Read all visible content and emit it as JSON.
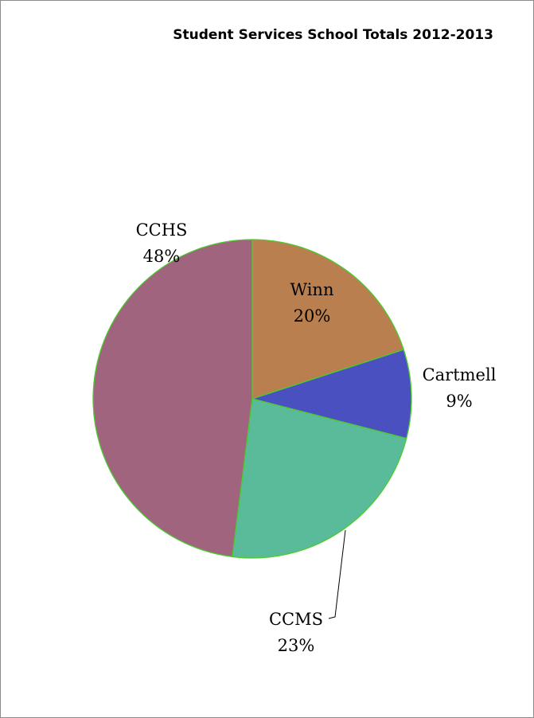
{
  "chart_data": {
    "type": "pie",
    "title": "Student Services School Totals 2012-2013",
    "slices": [
      {
        "label": "Winn",
        "percent_label": "20%",
        "value": 20,
        "color": "#BA7F4F"
      },
      {
        "label": "Cartmell",
        "percent_label": "9%",
        "value": 9,
        "color": "#4B50C1"
      },
      {
        "label": "CCMS",
        "percent_label": "23%",
        "value": 23,
        "color": "#59BB9A"
      },
      {
        "label": "CCHS",
        "percent_label": "48%",
        "value": 48,
        "color": "#A0647E"
      }
    ],
    "slice_border_color": "#4CCB2E",
    "legend": "none"
  }
}
